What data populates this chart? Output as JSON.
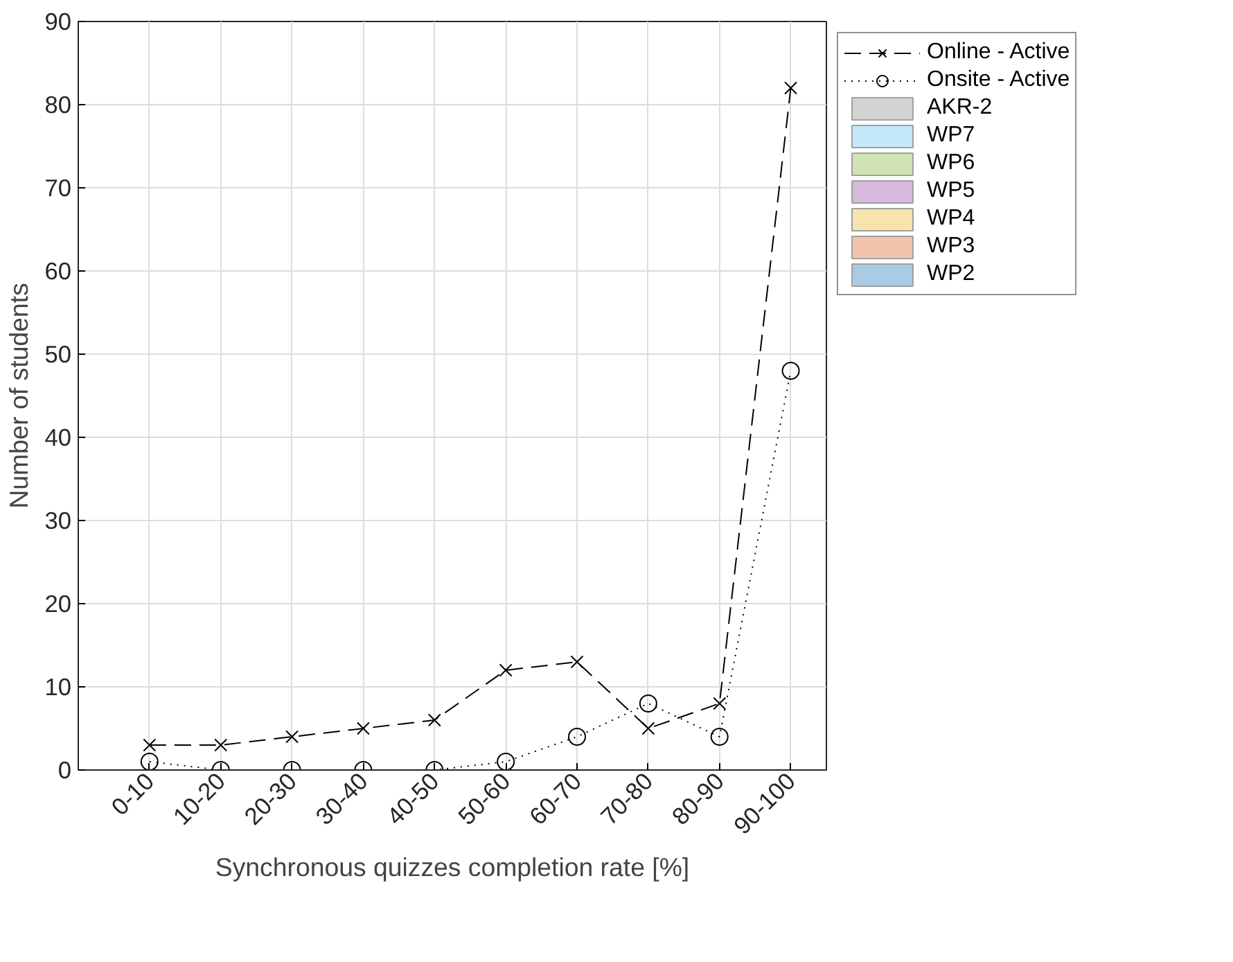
{
  "chart_data": {
    "type": "line",
    "xlabel": "Synchronous quizzes completion rate [%]",
    "ylabel": "Number of students",
    "ylim": [
      0,
      90
    ],
    "yticks": [
      0,
      10,
      20,
      30,
      40,
      50,
      60,
      70,
      80,
      90
    ],
    "categories": [
      "0-10",
      "10-20",
      "20-30",
      "30-40",
      "40-50",
      "50-60",
      "60-70",
      "70-80",
      "80-90",
      "90-100"
    ],
    "grid": true,
    "legend": "right",
    "series": [
      {
        "name": "Online - Active",
        "color": "#000000",
        "marker": "cross",
        "line_style": "dashed",
        "values": [
          3,
          3,
          4,
          5,
          6,
          12,
          13,
          5,
          8,
          82
        ]
      },
      {
        "name": "Onsite - Active",
        "color": "#000000",
        "marker": "circle",
        "line_style": "dotted",
        "values": [
          1,
          0,
          0,
          0,
          0,
          1,
          4,
          8,
          4,
          48
        ]
      },
      {
        "name": "AKR-2",
        "type": "bar",
        "color": "#d3d3d3",
        "values": [
          null,
          null,
          null,
          null,
          null,
          null,
          null,
          null,
          null,
          null
        ]
      },
      {
        "name": "WP7",
        "type": "bar",
        "color": "#c4e8f8",
        "values": [
          null,
          null,
          null,
          null,
          null,
          null,
          null,
          null,
          null,
          null
        ]
      },
      {
        "name": "WP6",
        "type": "bar",
        "color": "#cfe3b5",
        "values": [
          null,
          null,
          null,
          null,
          null,
          null,
          null,
          null,
          null,
          null
        ]
      },
      {
        "name": "WP5",
        "type": "bar",
        "color": "#d6b9dc",
        "values": [
          null,
          null,
          null,
          null,
          null,
          null,
          null,
          null,
          null,
          null
        ]
      },
      {
        "name": "WP4",
        "type": "bar",
        "color": "#f8e3ac",
        "values": [
          null,
          null,
          null,
          null,
          null,
          null,
          null,
          null,
          null,
          null
        ]
      },
      {
        "name": "WP3",
        "type": "bar",
        "color": "#f2c4ae",
        "values": [
          null,
          null,
          null,
          null,
          null,
          null,
          null,
          null,
          null,
          null
        ]
      },
      {
        "name": "WP2",
        "type": "bar",
        "color": "#a9cbe6",
        "values": [
          null,
          null,
          null,
          null,
          null,
          null,
          null,
          null,
          null,
          null
        ]
      }
    ]
  }
}
